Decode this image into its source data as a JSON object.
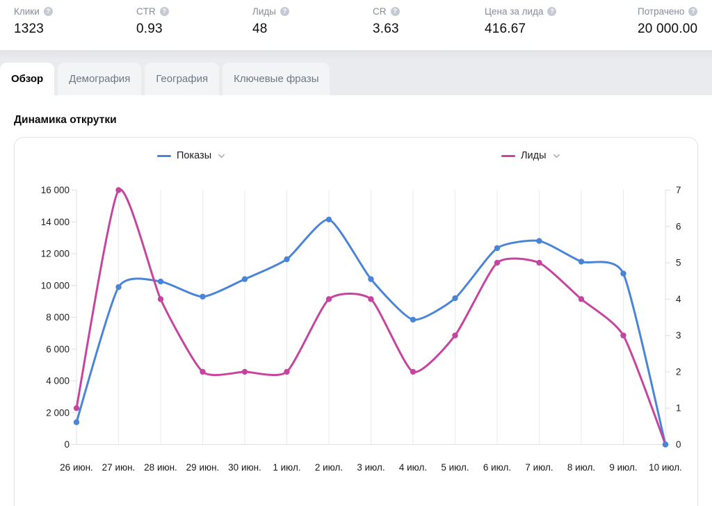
{
  "stats": [
    {
      "label": "Клики",
      "value": "1323"
    },
    {
      "label": "CTR",
      "value": "0.93"
    },
    {
      "label": "Лиды",
      "value": "48"
    },
    {
      "label": "CR",
      "value": "3.63"
    },
    {
      "label": "Цена за лида",
      "value": "416.67"
    },
    {
      "label": "Потрачено",
      "value": "20 000.00"
    }
  ],
  "icons": {
    "help_glyph": "?"
  },
  "tabs": [
    {
      "id": "overview",
      "label": "Обзор",
      "active": true
    },
    {
      "id": "demography",
      "label": "Демография",
      "active": false
    },
    {
      "id": "geography",
      "label": "География",
      "active": false
    },
    {
      "id": "keywords",
      "label": "Ключевые фразы",
      "active": false
    }
  ],
  "section_title": "Динамика открутки",
  "chart_data": {
    "type": "line",
    "title": "Динамика открутки",
    "x": [
      "26 июн.",
      "27 июн.",
      "28 июн.",
      "29 июн.",
      "30 июн.",
      "1 июл.",
      "2 июл.",
      "3 июл.",
      "4 июл.",
      "5 июл.",
      "6 июл.",
      "7 июл.",
      "8 июл.",
      "9 июл.",
      "10 июл."
    ],
    "series": [
      {
        "id": "impressions",
        "name": "Показы",
        "axis": "left",
        "color": "#4a84d7",
        "values": [
          1400,
          9900,
          10250,
          9300,
          10400,
          11650,
          14150,
          10400,
          7850,
          9200,
          12350,
          12800,
          11500,
          10750,
          0
        ]
      },
      {
        "id": "leads",
        "name": "Лиды",
        "axis": "right",
        "color": "#c5459e",
        "values": [
          1,
          7,
          4,
          2,
          2,
          2,
          4,
          4,
          2,
          3,
          5,
          5,
          4,
          3,
          0
        ]
      }
    ],
    "left_axis": {
      "min": 0,
      "max": 16000,
      "step": 2000
    },
    "right_axis": {
      "min": 0,
      "max": 7,
      "step": 1
    },
    "grid": "vertical-only",
    "legend_position": "top"
  }
}
